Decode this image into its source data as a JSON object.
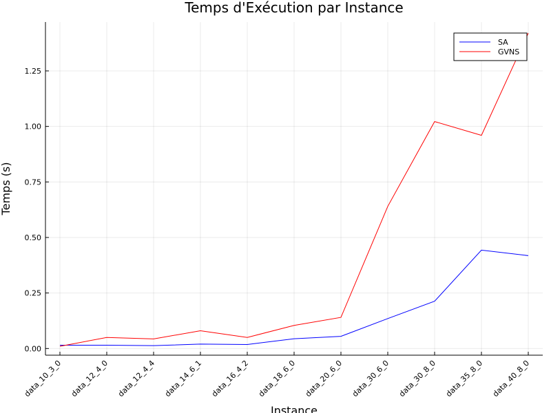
{
  "chart_data": {
    "type": "line",
    "title": "Temps d'Exécution par Instance",
    "xlabel": "Instance",
    "ylabel": "Temps (s)",
    "categories": [
      "data_10_3_0",
      "data_12_4_0",
      "data_12_4_4",
      "data_14_6_1",
      "data_16_4_2",
      "data_18_6_0",
      "data_20_6_0",
      "data_30_6_0",
      "data_30_8_0",
      "data_35_8_0",
      "data_40_8_0"
    ],
    "yticks": [
      0.0,
      0.25,
      0.5,
      0.75,
      1.0,
      1.25
    ],
    "ytick_labels": [
      "0.00",
      "0.25",
      "0.50",
      "0.75",
      "1.00",
      "1.25"
    ],
    "ylim": [
      -0.03,
      1.47
    ],
    "grid": true,
    "legend_position": "top-right",
    "series": [
      {
        "name": "SA",
        "color": "#0000ff",
        "values": [
          0.015,
          0.015,
          0.013,
          0.02,
          0.018,
          0.044,
          0.055,
          0.135,
          0.213,
          0.443,
          0.418
        ]
      },
      {
        "name": "GVNS",
        "color": "#ff0000",
        "values": [
          0.01,
          0.05,
          0.043,
          0.08,
          0.05,
          0.104,
          0.14,
          0.64,
          1.022,
          0.96,
          1.42
        ]
      }
    ]
  }
}
